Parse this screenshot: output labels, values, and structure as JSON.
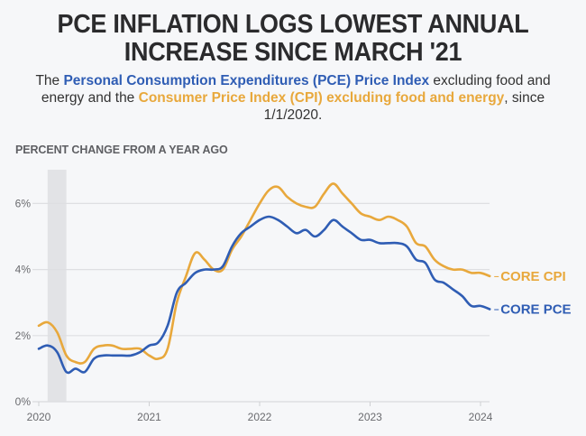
{
  "title_line1": "PCE INFLATION LOGS LOWEST ANNUAL",
  "title_line2": "INCREASE SINCE MARCH '21",
  "subtitle": {
    "pre": "The ",
    "pce_name": "Personal Consumption Expenditures (PCE) Price Index",
    "mid": " excluding food and energy and the ",
    "cpi_name": "Consumer Price Index (CPI) excluding food and energy",
    "post": ", since 1/1/2020."
  },
  "colors": {
    "cpi": "#e8a83c",
    "pce": "#2f5db4",
    "recession": "#e2e3e6",
    "grid": "#dedfe2"
  },
  "chart_data": {
    "type": "line",
    "title": "PCE INFLATION LOGS LOWEST ANNUAL INCREASE SINCE MARCH '21",
    "ylabel": "PERCENT CHANGE FROM A YEAR AGO",
    "xlabel": "",
    "ylim": [
      0,
      7
    ],
    "yticks": [
      0,
      2,
      4,
      6
    ],
    "ytick_labels": [
      "0%",
      "2%",
      "4%",
      "6%"
    ],
    "xticks": [
      2020,
      2021,
      2022,
      2023,
      2024
    ],
    "xtick_labels": [
      "2020",
      "2021",
      "2022",
      "2023",
      "2024"
    ],
    "xlim": [
      2020.0,
      2024.09
    ],
    "grid": true,
    "recession_band": [
      2020.08,
      2020.25
    ],
    "x_start": "2020-01",
    "x_step": "monthly",
    "series": [
      {
        "name": "CORE CPI",
        "color_key": "cpi",
        "values": [
          2.3,
          2.4,
          2.1,
          1.4,
          1.2,
          1.2,
          1.6,
          1.7,
          1.7,
          1.6,
          1.6,
          1.6,
          1.4,
          1.3,
          1.6,
          3.0,
          3.8,
          4.5,
          4.3,
          4.0,
          4.0,
          4.6,
          5.0,
          5.5,
          6.0,
          6.4,
          6.5,
          6.2,
          6.0,
          5.9,
          5.9,
          6.3,
          6.6,
          6.3,
          6.0,
          5.7,
          5.6,
          5.5,
          5.6,
          5.5,
          5.3,
          4.8,
          4.7,
          4.3,
          4.1,
          4.0,
          4.0,
          3.9,
          3.9,
          3.8
        ]
      },
      {
        "name": "CORE PCE",
        "color_key": "pce",
        "values": [
          1.6,
          1.7,
          1.5,
          0.9,
          1.0,
          0.9,
          1.3,
          1.4,
          1.4,
          1.4,
          1.4,
          1.5,
          1.7,
          1.8,
          2.3,
          3.3,
          3.6,
          3.9,
          4.0,
          4.0,
          4.1,
          4.7,
          5.1,
          5.3,
          5.5,
          5.6,
          5.5,
          5.3,
          5.1,
          5.2,
          5.0,
          5.2,
          5.5,
          5.3,
          5.1,
          4.9,
          4.9,
          4.8,
          4.8,
          4.8,
          4.7,
          4.3,
          4.2,
          3.7,
          3.6,
          3.4,
          3.2,
          2.9,
          2.9,
          2.8
        ]
      }
    ],
    "legend": "inline-right"
  }
}
